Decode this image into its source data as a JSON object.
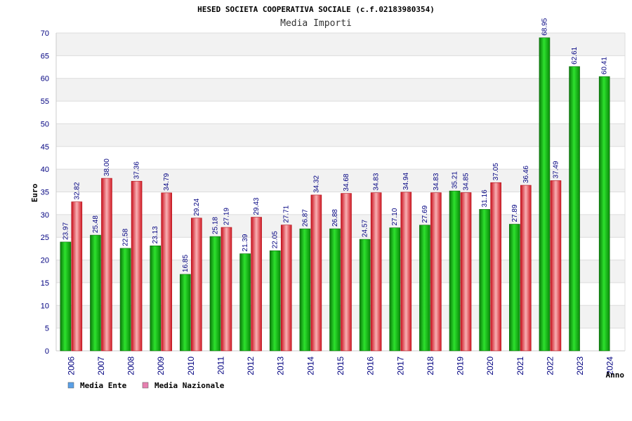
{
  "chart_data": {
    "type": "bar",
    "title": "HESED SOCIETA COOPERATIVA SOCIALE (c.f.02183980354)",
    "subtitle": "Media Importi",
    "ylabel": "Euro",
    "xlabel": "Anno",
    "ylim": [
      0,
      70
    ],
    "ytick_step": 5,
    "grid": true,
    "legend_position": "bottom-left",
    "categories": [
      "2006",
      "2007",
      "2008",
      "2009",
      "2010",
      "2011",
      "2012",
      "2013",
      "2014",
      "2015",
      "2016",
      "2017",
      "2018",
      "2019",
      "2020",
      "2021",
      "2022",
      "2023",
      "2024"
    ],
    "series": [
      {
        "name": "Media Ente",
        "legend_color": "#5aa0e6",
        "bar_color": "#22b422",
        "values": [
          23.97,
          25.48,
          22.58,
          23.13,
          16.85,
          25.18,
          21.39,
          22.05,
          26.87,
          26.88,
          24.57,
          27.1,
          27.69,
          35.21,
          31.16,
          27.89,
          68.95,
          62.61,
          60.41
        ],
        "labels": [
          "23.97",
          "25.48",
          "22.58",
          "23.13",
          "16.85",
          "25.18",
          "21.39",
          "22.05",
          "26.87",
          "26.88",
          "24.57",
          "27.10",
          "27.69",
          "35.21",
          "31.16",
          "27.89",
          "68.95",
          "62.61",
          "60.41"
        ]
      },
      {
        "name": "Media Nazionale",
        "legend_color": "#e680b0",
        "bar_color": "#e8323c",
        "values": [
          32.82,
          38.0,
          37.36,
          34.79,
          29.24,
          27.19,
          29.43,
          27.71,
          34.32,
          34.68,
          34.83,
          34.94,
          34.83,
          34.85,
          37.05,
          36.46,
          37.49,
          null,
          null
        ],
        "labels": [
          "32.82",
          "38.00",
          "37.36",
          "34.79",
          "29.24",
          "27.19",
          "29.43",
          "27.71",
          "34.32",
          "34.68",
          "34.83",
          "34.94",
          "34.83",
          "34.85",
          "37.05",
          "36.46",
          "37.49",
          "",
          ""
        ]
      }
    ]
  }
}
